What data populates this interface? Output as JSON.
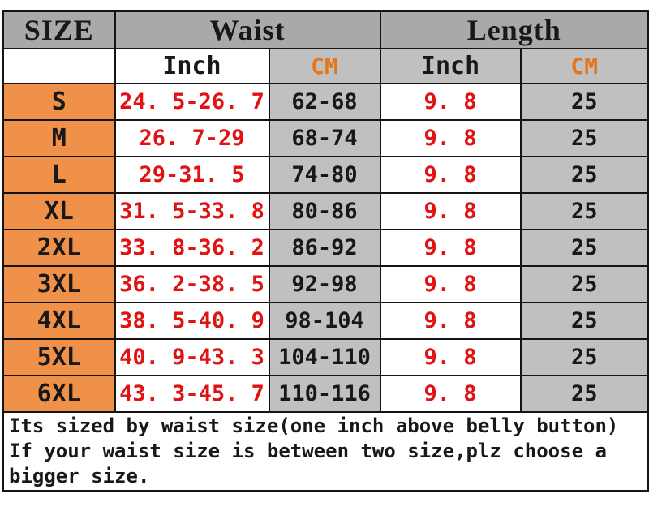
{
  "colors": {
    "header_gray": "#a9a9a9",
    "cm_column_gray": "#c0c0c0",
    "size_column_orange": "#f0914a",
    "cm_text_orange": "#e5761c",
    "inch_value_red": "#e01212",
    "border_black": "#141414"
  },
  "table": {
    "header": {
      "size": "SIZE",
      "waist": "Waist",
      "length": "Length"
    },
    "subheader": {
      "waist_inch": "Inch",
      "waist_cm": "CM",
      "length_inch": "Inch",
      "length_cm": "CM"
    },
    "rows": [
      {
        "size": "S",
        "waist_inch": "24. 5-26. 7",
        "waist_cm": "62-68",
        "length_inch": "9. 8",
        "length_cm": "25"
      },
      {
        "size": "M",
        "waist_inch": "26. 7-29",
        "waist_cm": "68-74",
        "length_inch": "9. 8",
        "length_cm": "25"
      },
      {
        "size": "L",
        "waist_inch": "29-31. 5",
        "waist_cm": "74-80",
        "length_inch": "9. 8",
        "length_cm": "25"
      },
      {
        "size": "XL",
        "waist_inch": "31. 5-33. 8",
        "waist_cm": "80-86",
        "length_inch": "9. 8",
        "length_cm": "25"
      },
      {
        "size": "2XL",
        "waist_inch": "33. 8-36. 2",
        "waist_cm": "86-92",
        "length_inch": "9. 8",
        "length_cm": "25"
      },
      {
        "size": "3XL",
        "waist_inch": "36. 2-38. 5",
        "waist_cm": "92-98",
        "length_inch": "9. 8",
        "length_cm": "25"
      },
      {
        "size": "4XL",
        "waist_inch": "38. 5-40. 9",
        "waist_cm": "98-104",
        "length_inch": "9. 8",
        "length_cm": "25"
      },
      {
        "size": "5XL",
        "waist_inch": "40. 9-43. 3",
        "waist_cm": "104-110",
        "length_inch": "9. 8",
        "length_cm": "25"
      },
      {
        "size": "6XL",
        "waist_inch": "43. 3-45. 7",
        "waist_cm": "110-116",
        "length_inch": "9. 8",
        "length_cm": "25"
      }
    ]
  },
  "footer": {
    "lines": [
      "Its sized by waist size(one inch above belly button)",
      "If your waist size is between two size,plz choose a",
      "bigger size."
    ]
  },
  "chart_data": {
    "type": "table",
    "title": "Garment size chart",
    "column_groups": [
      "SIZE",
      "Waist",
      "Length"
    ],
    "columns": [
      "SIZE",
      "Waist Inch",
      "Waist CM",
      "Length Inch",
      "Length CM"
    ],
    "rows": [
      [
        "S",
        "24.5-26.7",
        "62-68",
        "9.8",
        "25"
      ],
      [
        "M",
        "26.7-29",
        "68-74",
        "9.8",
        "25"
      ],
      [
        "L",
        "29-31.5",
        "74-80",
        "9.8",
        "25"
      ],
      [
        "XL",
        "31.5-33.8",
        "80-86",
        "9.8",
        "25"
      ],
      [
        "2XL",
        "33.8-36.2",
        "86-92",
        "9.8",
        "25"
      ],
      [
        "3XL",
        "36.2-38.5",
        "92-98",
        "9.8",
        "25"
      ],
      [
        "4XL",
        "38.5-40.9",
        "98-104",
        "9.8",
        "25"
      ],
      [
        "5XL",
        "40.9-43.3",
        "104-110",
        "9.8",
        "25"
      ],
      [
        "6XL",
        "43.3-45.7",
        "110-116",
        "9.8",
        "25"
      ]
    ],
    "notes": [
      "Its sized by waist size(one inch above belly button)",
      "If your waist size is between two size,plz choose a bigger size."
    ]
  }
}
